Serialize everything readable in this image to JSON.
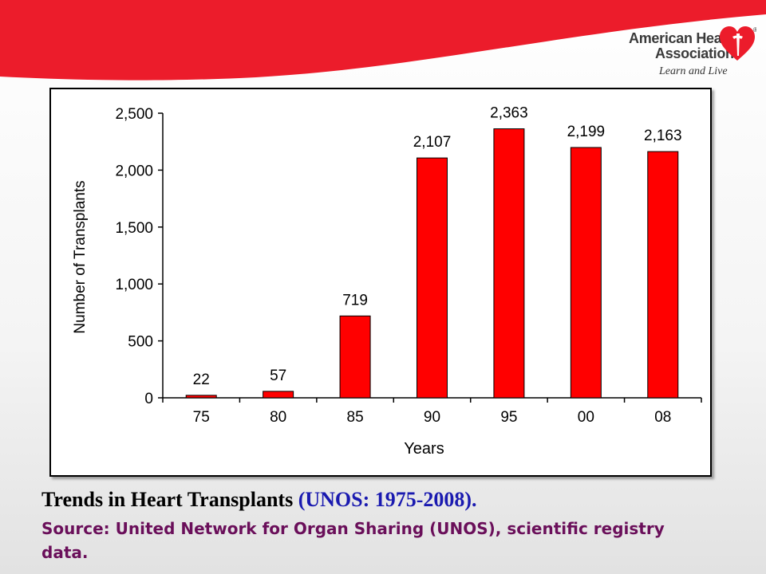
{
  "logo": {
    "line1": "American Heart",
    "line2": "Association",
    "tagline": "Learn and Live",
    "mark": "®"
  },
  "colors": {
    "banner": "#ec1c2b",
    "bar": "#ff0000",
    "caption_title": "#000000",
    "caption_subtitle": "#1a1ab0",
    "source": "#6a0f5a"
  },
  "chart_data": {
    "type": "bar",
    "categories": [
      "75",
      "80",
      "85",
      "90",
      "95",
      "00",
      "08"
    ],
    "values": [
      22,
      57,
      719,
      2107,
      2363,
      2199,
      2163
    ],
    "value_labels": [
      "22",
      "57",
      "719",
      "2,107",
      "2,363",
      "2,199",
      "2,163"
    ],
    "xlabel": "Years",
    "ylabel": "Number of Transplants",
    "ylim": [
      0,
      2500
    ],
    "yticks": [
      0,
      500,
      1000,
      1500,
      2000,
      2500
    ],
    "ytick_labels": [
      "0",
      "500",
      "1,000",
      "1,500",
      "2,000",
      "2,500"
    ],
    "grid": false,
    "legend": "none"
  },
  "caption": {
    "title": "Trends in Heart Transplants ",
    "subtitle": "(UNOS: 1975-2008).",
    "source": "Source: United Network for Organ Sharing (UNOS), scientific registry data."
  }
}
